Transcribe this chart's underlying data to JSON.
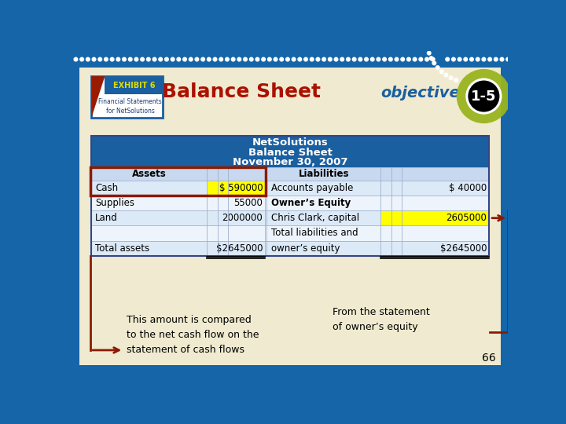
{
  "slide_bg": "#1565a8",
  "bg_cream": "#f0ebd0",
  "table_header_blue": "#1a5fa0",
  "highlight_yellow": "#ffff00",
  "red_dark": "#8b1a00",
  "blue_obj": "#1a5fa0",
  "olive_green": "#9ab520",
  "title": "Balance Sheet",
  "objective_text": "objective",
  "obj_number": "1-5",
  "exhibit_text": "EXHIBIT 6",
  "exhibit_sub": "Financial Statements\nfor NetSolutions",
  "table_title_line1": "NetSolutions",
  "table_title_line2": "Balance Sheet",
  "table_title_line3": "November 30, 2007",
  "assets_header": "Assets",
  "liabilities_header": "Liabilities",
  "rows": [
    [
      "Cash",
      "$ 590000",
      "Accounts payable",
      "$ 40000"
    ],
    [
      "Supplies",
      "55000",
      "Owner’s Equity",
      ""
    ],
    [
      "Land",
      "2000000",
      "Chris Clark, capital",
      "2605000"
    ],
    [
      "",
      "",
      "Total liabilities and",
      ""
    ],
    [
      "Total assets",
      "$264 5000",
      "owner’s equity",
      "$2645000"
    ]
  ],
  "annotation_left": "This amount is compared\nto the net cash flow on the\nstatement of cash flows",
  "annotation_right": "From the statement\nof owner’s equity",
  "page_number": "66",
  "dot_color": "#ffffff",
  "row_colors": [
    "#dce9f7",
    "#eef4fc",
    "#dce9f7",
    "#eef4fc",
    "#dce9f7"
  ]
}
